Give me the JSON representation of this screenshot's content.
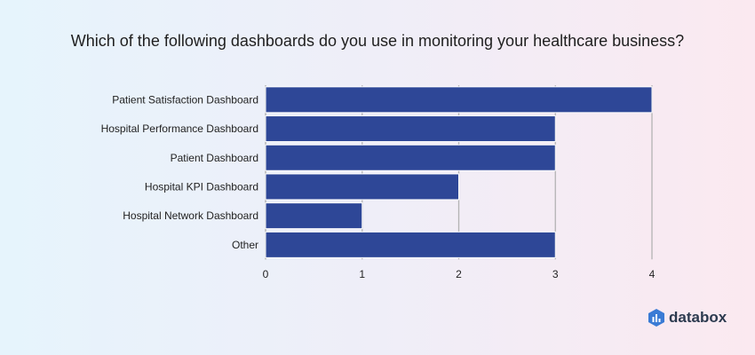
{
  "chart_data": {
    "type": "bar",
    "orientation": "horizontal",
    "title": "Which of the following dashboards do you use in monitoring your healthcare business?",
    "categories": [
      "Patient Satisfaction Dashboard",
      "Hospital Performance Dashboard",
      "Patient Dashboard",
      "Hospital KPI Dashboard",
      "Hospital Network Dashboard",
      "Other"
    ],
    "values": [
      4,
      3,
      3,
      2,
      1,
      3
    ],
    "xlim": [
      0,
      4
    ],
    "xticks": [
      "0",
      "1",
      "2",
      "3",
      "4"
    ],
    "grid": true,
    "bar_color": "#2e4797",
    "grid_color": "#b3b3b3"
  },
  "brand": {
    "name": "databox",
    "icon": "databox-logo-icon",
    "color": "#2c3a4f",
    "icon_color": "#3a7bd5"
  }
}
